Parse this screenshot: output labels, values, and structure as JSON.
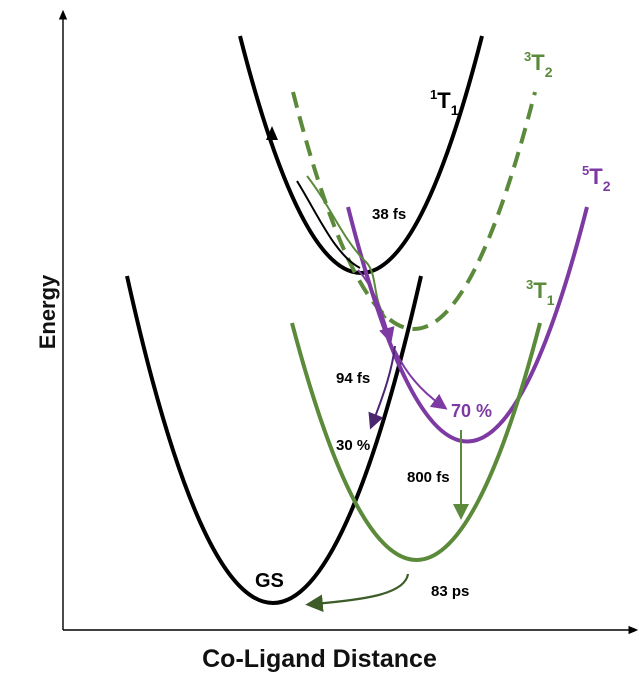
{
  "axes": {
    "x_title": "Co-Ligand Distance",
    "y_title": "Energy"
  },
  "states": {
    "singlet_t1": {
      "label": "T",
      "sup": "1",
      "sub": "1"
    },
    "triplet_t2": {
      "label": "T",
      "sup": "3",
      "sub": "2"
    },
    "quintet_t2": {
      "label": "T",
      "sup": "5",
      "sub": "2"
    },
    "triplet_t1": {
      "label": "T",
      "sup": "3",
      "sub": "1"
    },
    "ground": {
      "label": "GS"
    }
  },
  "annotations": {
    "t38": "38 fs",
    "t94": "94 fs",
    "y30": "30 %",
    "y70": "70 %",
    "t800": "800 fs",
    "t83": "83 ps"
  },
  "colors": {
    "black": "#000000",
    "green": "#5b8a3a",
    "dark_green": "#3d5c28",
    "purple": "#7e3aa3",
    "dark_purple": "#4b2570",
    "gray": "#555555"
  }
}
